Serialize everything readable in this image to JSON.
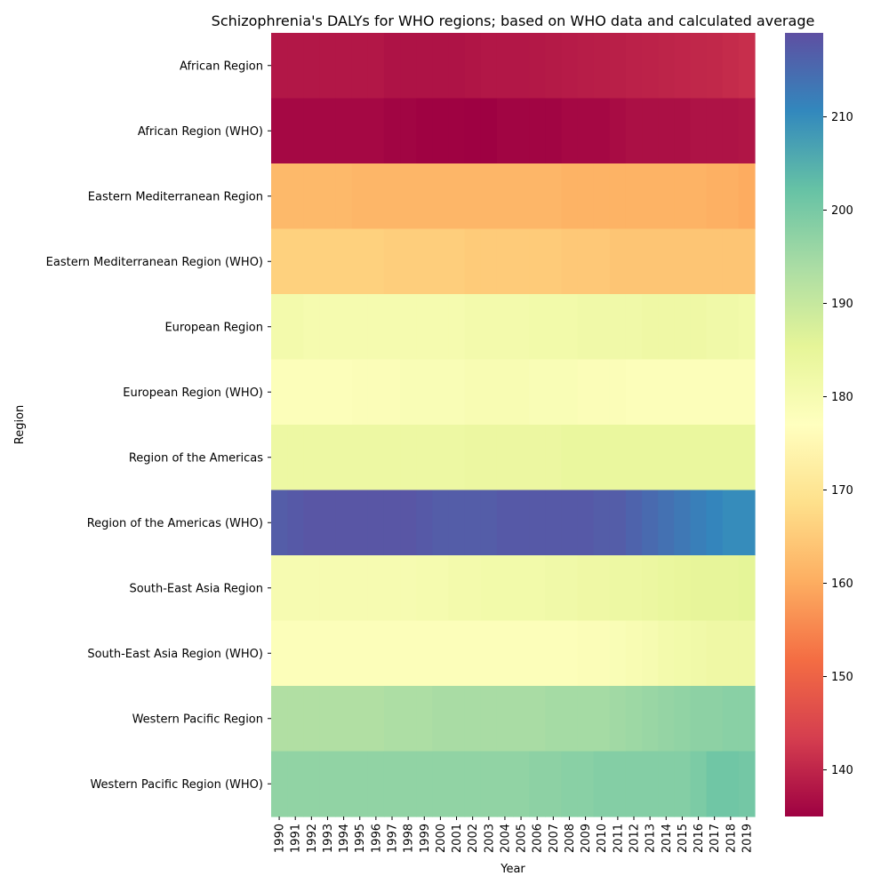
{
  "chart_data": {
    "type": "heatmap",
    "title": "Schizophrenia's DALYs for WHO regions; based on WHO data and calculated average",
    "xlabel": "Year",
    "ylabel": "Region",
    "x": [
      "1990",
      "1991",
      "1992",
      "1993",
      "1994",
      "1995",
      "1996",
      "1997",
      "1998",
      "1999",
      "2000",
      "2001",
      "2002",
      "2003",
      "2004",
      "2005",
      "2006",
      "2007",
      "2008",
      "2009",
      "2010",
      "2011",
      "2012",
      "2013",
      "2014",
      "2015",
      "2016",
      "2017",
      "2018",
      "2019"
    ],
    "y": [
      "African Region",
      "African Region (WHO)",
      "Eastern Mediterranean Region",
      "Eastern Mediterranean Region (WHO)",
      "European Region",
      "European Region (WHO)",
      "Region of the Americas",
      "Region of the Americas (WHO)",
      "South-East Asia Region",
      "South-East Asia Region (WHO)",
      "Western Pacific Region",
      "Western Pacific Region (WHO)"
    ],
    "values": [
      [
        138.0,
        138.0,
        138.0,
        138.0,
        138.0,
        138.0,
        138.0,
        137.5,
        137.5,
        137.5,
        137.5,
        137.5,
        137.8,
        138.0,
        138.0,
        138.0,
        138.2,
        138.4,
        138.6,
        138.8,
        139.0,
        139.2,
        139.4,
        139.6,
        139.8,
        140.0,
        140.2,
        140.4,
        140.8,
        141.2
      ],
      [
        136.0,
        136.0,
        136.0,
        136.0,
        136.0,
        136.0,
        136.0,
        135.5,
        135.5,
        135.2,
        135.2,
        135.2,
        135.0,
        135.0,
        135.5,
        135.5,
        135.5,
        135.5,
        136.0,
        136.0,
        136.0,
        136.5,
        137.0,
        137.0,
        137.0,
        137.0,
        137.5,
        137.5,
        137.5,
        137.8
      ],
      [
        162.0,
        162.0,
        162.0,
        162.0,
        162.0,
        161.5,
        161.5,
        161.5,
        161.5,
        161.5,
        161.5,
        161.5,
        161.5,
        161.5,
        161.5,
        161.5,
        161.5,
        161.5,
        161.0,
        161.0,
        161.0,
        161.0,
        161.0,
        161.0,
        161.0,
        161.0,
        161.0,
        160.5,
        160.5,
        160.0
      ],
      [
        166.0,
        166.0,
        166.0,
        166.0,
        166.0,
        166.0,
        166.0,
        165.5,
        165.5,
        165.5,
        165.5,
        165.5,
        165.0,
        165.0,
        165.0,
        165.0,
        165.0,
        165.0,
        164.5,
        164.5,
        164.5,
        164.0,
        164.0,
        164.0,
        164.0,
        164.0,
        164.0,
        164.0,
        164.0,
        164.0
      ],
      [
        181.0,
        181.0,
        180.5,
        180.5,
        180.5,
        180.5,
        180.5,
        180.5,
        180.5,
        180.5,
        180.5,
        180.5,
        181.0,
        181.0,
        181.0,
        181.0,
        181.5,
        181.5,
        181.5,
        182.0,
        182.0,
        182.0,
        182.0,
        182.5,
        182.5,
        182.5,
        182.5,
        182.0,
        182.0,
        181.5
      ],
      [
        178.0,
        178.0,
        178.0,
        178.0,
        178.0,
        178.5,
        178.5,
        178.5,
        179.0,
        179.0,
        179.0,
        179.0,
        179.5,
        179.5,
        179.5,
        179.5,
        179.0,
        179.0,
        179.0,
        178.5,
        178.5,
        178.5,
        178.0,
        178.0,
        178.0,
        178.0,
        178.0,
        178.0,
        178.0,
        178.0
      ],
      [
        183.0,
        183.0,
        183.0,
        183.0,
        183.0,
        183.0,
        183.0,
        183.0,
        183.0,
        183.0,
        183.0,
        183.0,
        183.5,
        183.5,
        183.5,
        183.5,
        183.5,
        183.5,
        184.0,
        184.0,
        184.0,
        184.0,
        184.0,
        184.0,
        184.0,
        184.0,
        184.0,
        184.0,
        184.0,
        184.0
      ],
      [
        217.0,
        217.5,
        218.0,
        218.0,
        218.0,
        218.0,
        218.0,
        218.0,
        218.0,
        217.5,
        217.0,
        217.0,
        217.0,
        217.0,
        217.5,
        217.5,
        217.5,
        217.5,
        217.5,
        217.5,
        217.0,
        217.0,
        216.0,
        215.0,
        214.0,
        213.0,
        212.0,
        211.0,
        210.0,
        210.0
      ],
      [
        180.0,
        180.0,
        180.0,
        180.0,
        180.0,
        180.0,
        180.0,
        180.0,
        180.0,
        180.5,
        180.5,
        181.0,
        181.0,
        181.5,
        181.5,
        181.5,
        181.5,
        182.0,
        182.0,
        182.5,
        182.5,
        183.0,
        183.0,
        183.5,
        184.0,
        184.5,
        185.0,
        185.0,
        185.0,
        185.5
      ],
      [
        178.0,
        178.0,
        178.0,
        178.0,
        178.0,
        178.0,
        178.0,
        178.0,
        178.0,
        178.0,
        178.0,
        178.0,
        178.0,
        178.0,
        178.0,
        178.0,
        178.0,
        178.0,
        178.0,
        178.5,
        178.5,
        179.0,
        179.5,
        180.0,
        181.0,
        181.5,
        182.0,
        182.5,
        182.5,
        182.5
      ],
      [
        193.0,
        193.0,
        193.0,
        193.0,
        193.0,
        193.0,
        193.0,
        193.5,
        193.5,
        193.5,
        194.0,
        194.0,
        194.0,
        194.0,
        194.0,
        194.0,
        194.0,
        194.5,
        194.5,
        194.5,
        194.5,
        195.0,
        195.5,
        196.0,
        196.5,
        197.0,
        197.5,
        197.5,
        198.0,
        198.0
      ],
      [
        197.0,
        197.0,
        197.0,
        197.0,
        197.0,
        197.0,
        197.0,
        197.0,
        197.0,
        197.0,
        197.0,
        197.0,
        197.0,
        197.0,
        197.0,
        197.0,
        197.5,
        197.5,
        198.0,
        198.0,
        198.5,
        198.5,
        198.5,
        198.5,
        198.5,
        198.5,
        199.5,
        201.0,
        201.0,
        200.5
      ]
    ],
    "colorbar": {
      "min": 135,
      "max": 219,
      "ticks": [
        140,
        150,
        160,
        170,
        180,
        190,
        200,
        210
      ]
    },
    "colormap": "Spectral",
    "colormap_stops": [
      "#9e0142",
      "#d53e4f",
      "#f46d43",
      "#fdae61",
      "#fee08b",
      "#ffffbf",
      "#e6f598",
      "#abdda4",
      "#66c2a5",
      "#3288bd",
      "#5e4fa2"
    ],
    "grid": false
  }
}
